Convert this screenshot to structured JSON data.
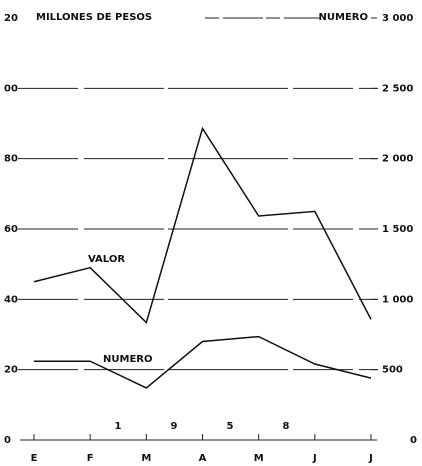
{
  "chart_data": {
    "type": "line",
    "ylabel": "MILLONES DE PESOS",
    "y2label": "NUMERO",
    "categories": [
      "E",
      "F",
      "M",
      "A",
      "M",
      "J",
      "J"
    ],
    "series": [
      {
        "name": "VALOR",
        "color": "#111111",
        "values": [
          45,
          49,
          33.4,
          88.6,
          63.7,
          65,
          34.3
        ]
      },
      {
        "name": "NUMERO",
        "color": "#111111",
        "axis": "y2",
        "values": [
          560,
          560,
          370,
          700,
          735,
          540,
          440
        ]
      }
    ],
    "ylim": [
      0,
      120
    ],
    "yticks": [
      0,
      20,
      40,
      60,
      80,
      {
        "value": 100,
        "label": "00"
      },
      {
        "value": 120,
        "label": "20"
      }
    ],
    "y2lim": [
      0,
      3000
    ],
    "y2ticks": [
      0,
      500,
      {
        "value": 1000,
        "label": "1 000"
      },
      {
        "value": 1500,
        "label": "1 500"
      },
      {
        "value": 2000,
        "label": "2 000"
      },
      {
        "value": 2500,
        "label": "2 500"
      },
      {
        "value": 3000,
        "label": "3 000"
      }
    ],
    "annotations": [
      "1",
      "9",
      "5",
      "8"
    ],
    "grid": true
  }
}
